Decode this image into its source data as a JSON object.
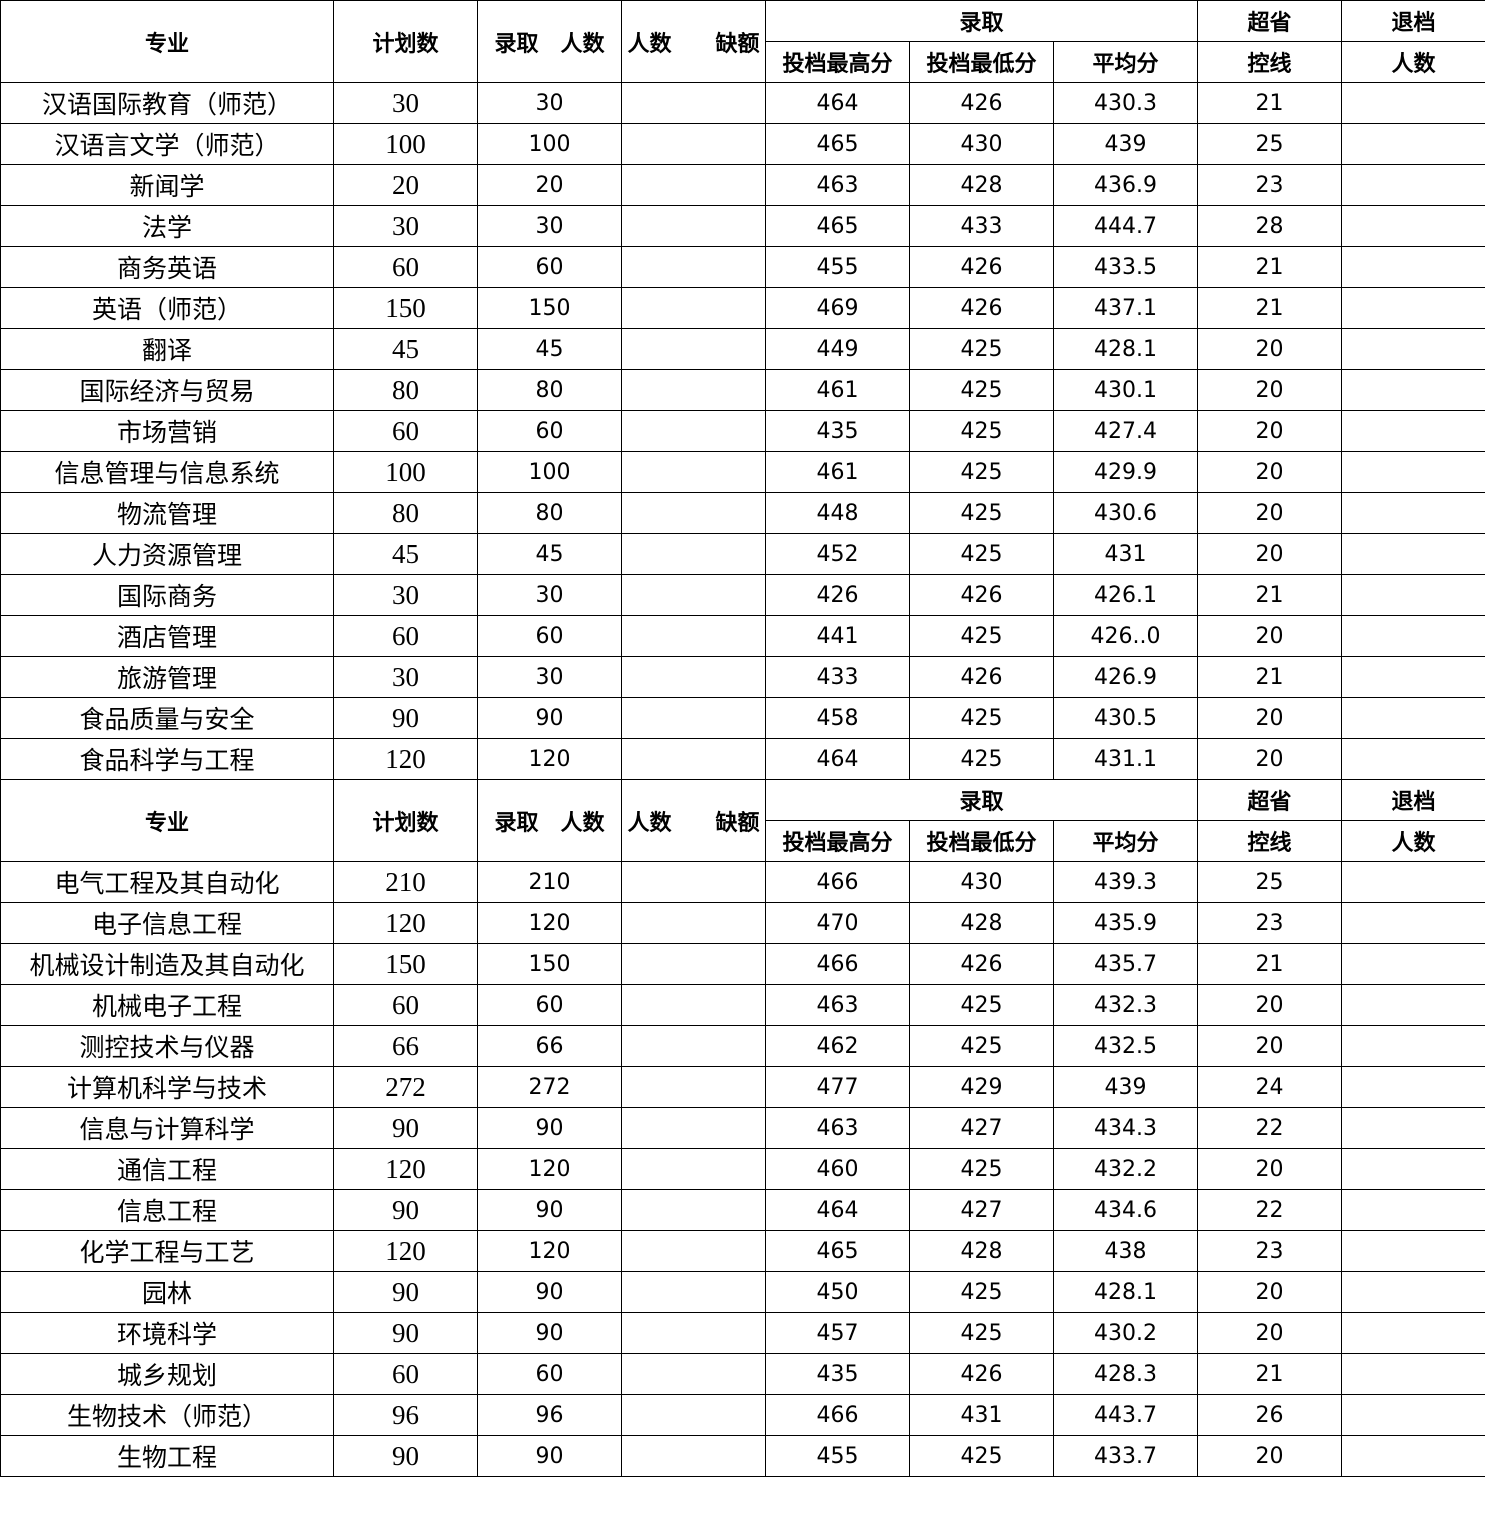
{
  "header": {
    "major": "专业",
    "plan": "计划数",
    "admitted": "录取　人数",
    "shortfall": "人数　　缺额",
    "admission_group": "录取",
    "max_score": "投档最高分",
    "min_score": "投档最低分",
    "avg_score": "平均分",
    "above_line_1": "超省",
    "above_line_2": "控线",
    "withdrawn_1": "退档",
    "withdrawn_2": "人数"
  },
  "sections": [
    {
      "rows": [
        [
          "汉语国际教育（师范）",
          "30",
          "30",
          "",
          "464",
          "426",
          "430.3",
          "21",
          ""
        ],
        [
          "汉语言文学（师范）",
          "100",
          "100",
          "",
          "465",
          "430",
          "439",
          "25",
          ""
        ],
        [
          "新闻学",
          "20",
          "20",
          "",
          "463",
          "428",
          "436.9",
          "23",
          ""
        ],
        [
          "法学",
          "30",
          "30",
          "",
          "465",
          "433",
          "444.7",
          "28",
          ""
        ],
        [
          "商务英语",
          "60",
          "60",
          "",
          "455",
          "426",
          "433.5",
          "21",
          ""
        ],
        [
          "英语（师范）",
          "150",
          "150",
          "",
          "469",
          "426",
          "437.1",
          "21",
          ""
        ],
        [
          "翻译",
          "45",
          "45",
          "",
          "449",
          "425",
          "428.1",
          "20",
          ""
        ],
        [
          "国际经济与贸易",
          "80",
          "80",
          "",
          "461",
          "425",
          "430.1",
          "20",
          ""
        ],
        [
          "市场营销",
          "60",
          "60",
          "",
          "435",
          "425",
          "427.4",
          "20",
          ""
        ],
        [
          "信息管理与信息系统",
          "100",
          "100",
          "",
          "461",
          "425",
          "429.9",
          "20",
          ""
        ],
        [
          "物流管理",
          "80",
          "80",
          "",
          "448",
          "425",
          "430.6",
          "20",
          ""
        ],
        [
          "人力资源管理",
          "45",
          "45",
          "",
          "452",
          "425",
          "431",
          "20",
          ""
        ],
        [
          "国际商务",
          "30",
          "30",
          "",
          "426",
          "426",
          "426.1",
          "21",
          ""
        ],
        [
          "酒店管理",
          "60",
          "60",
          "",
          "441",
          "425",
          "426..0",
          "20",
          ""
        ],
        [
          "旅游管理",
          "30",
          "30",
          "",
          "433",
          "426",
          "426.9",
          "21",
          ""
        ],
        [
          "食品质量与安全",
          "90",
          "90",
          "",
          "458",
          "425",
          "430.5",
          "20",
          ""
        ],
        [
          "食品科学与工程",
          "120",
          "120",
          "",
          "464",
          "425",
          "431.1",
          "20",
          ""
        ]
      ]
    },
    {
      "rows": [
        [
          "电气工程及其自动化",
          "210",
          "210",
          "",
          "466",
          "430",
          "439.3",
          "25",
          ""
        ],
        [
          "电子信息工程",
          "120",
          "120",
          "",
          "470",
          "428",
          "435.9",
          "23",
          ""
        ],
        [
          "机械设计制造及其自动化",
          "150",
          "150",
          "",
          "466",
          "426",
          "435.7",
          "21",
          ""
        ],
        [
          "机械电子工程",
          "60",
          "60",
          "",
          "463",
          "425",
          "432.3",
          "20",
          ""
        ],
        [
          "测控技术与仪器",
          "66",
          "66",
          "",
          "462",
          "425",
          "432.5",
          "20",
          ""
        ],
        [
          "计算机科学与技术",
          "272",
          "272",
          "",
          "477",
          "429",
          "439",
          "24",
          ""
        ],
        [
          "信息与计算科学",
          "90",
          "90",
          "",
          "463",
          "427",
          "434.3",
          "22",
          ""
        ],
        [
          "通信工程",
          "120",
          "120",
          "",
          "460",
          "425",
          "432.2",
          "20",
          ""
        ],
        [
          "信息工程",
          "90",
          "90",
          "",
          "464",
          "427",
          "434.6",
          "22",
          ""
        ],
        [
          "化学工程与工艺",
          "120",
          "120",
          "",
          "465",
          "428",
          "438",
          "23",
          ""
        ],
        [
          "园林",
          "90",
          "90",
          "",
          "450",
          "425",
          "428.1",
          "20",
          ""
        ],
        [
          "环境科学",
          "90",
          "90",
          "",
          "457",
          "425",
          "430.2",
          "20",
          ""
        ],
        [
          "城乡规划",
          "60",
          "60",
          "",
          "435",
          "426",
          "428.3",
          "21",
          ""
        ],
        [
          "生物技术（师范）",
          "96",
          "96",
          "",
          "466",
          "431",
          "443.7",
          "26",
          ""
        ],
        [
          "生物工程",
          "90",
          "90",
          "",
          "455",
          "425",
          "433.7",
          "20",
          ""
        ]
      ]
    }
  ]
}
